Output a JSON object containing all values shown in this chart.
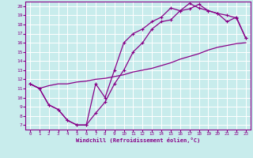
{
  "xlabel": "Windchill (Refroidissement éolien,°C)",
  "bg_color": "#c8ecec",
  "line_color": "#880088",
  "grid_color": "#ffffff",
  "xlim": [
    -0.5,
    23.5
  ],
  "ylim": [
    6.5,
    20.5
  ],
  "xticks": [
    0,
    1,
    2,
    3,
    4,
    5,
    6,
    7,
    8,
    9,
    10,
    11,
    12,
    13,
    14,
    15,
    16,
    17,
    18,
    19,
    20,
    21,
    22,
    23
  ],
  "yticks": [
    7,
    8,
    9,
    10,
    11,
    12,
    13,
    14,
    15,
    16,
    17,
    18,
    19,
    20
  ],
  "curve1_x": [
    0,
    1,
    2,
    3,
    4,
    5,
    6,
    7,
    8,
    9,
    10,
    11,
    12,
    13,
    14,
    15,
    16,
    17,
    18,
    19,
    20,
    21,
    22,
    23
  ],
  "curve1_y": [
    11.5,
    11.0,
    9.2,
    8.7,
    7.5,
    7.0,
    7.0,
    8.3,
    9.5,
    11.5,
    13.0,
    15.0,
    16.0,
    17.5,
    18.3,
    18.5,
    19.5,
    19.7,
    20.2,
    19.5,
    19.2,
    19.0,
    18.7,
    16.5
  ],
  "curve2_x": [
    0,
    1,
    2,
    3,
    4,
    5,
    6,
    7,
    8,
    9,
    10,
    11,
    12,
    13,
    14,
    15,
    16,
    17,
    18,
    19,
    20,
    21,
    22,
    23
  ],
  "curve2_y": [
    11.5,
    11.0,
    9.2,
    8.7,
    7.5,
    7.0,
    7.0,
    11.5,
    10.0,
    13.0,
    16.0,
    17.0,
    17.5,
    18.3,
    18.8,
    19.8,
    19.5,
    20.3,
    19.8,
    19.5,
    19.2,
    18.3,
    18.8,
    16.5
  ],
  "curve3_x": [
    0,
    1,
    2,
    3,
    4,
    5,
    6,
    7,
    8,
    9,
    10,
    11,
    12,
    13,
    14,
    15,
    16,
    17,
    18,
    19,
    20,
    21,
    22,
    23
  ],
  "curve3_y": [
    11.5,
    11.0,
    11.3,
    11.5,
    11.5,
    11.7,
    11.8,
    12.0,
    12.1,
    12.3,
    12.5,
    12.8,
    13.0,
    13.2,
    13.5,
    13.8,
    14.2,
    14.5,
    14.8,
    15.2,
    15.5,
    15.7,
    15.9,
    16.0
  ],
  "marker": "+",
  "markersize": 3,
  "linewidth": 0.9
}
